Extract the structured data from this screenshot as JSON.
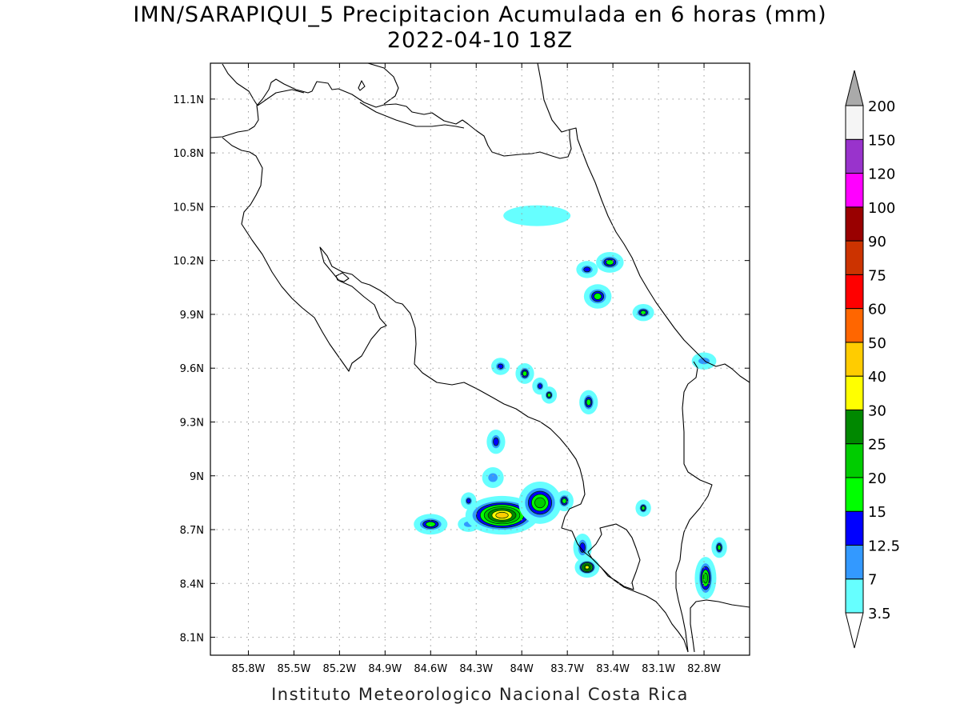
{
  "title": {
    "line1": "IMN/SARAPIQUI_5 Precipitacion Acumulada en 6 horas (mm)",
    "line2": "2022-04-10 18Z"
  },
  "footer": "Instituto Meteorologico Nacional Costa Rica",
  "map": {
    "lon_range": [
      -86.05,
      -82.5
    ],
    "lat_range": [
      8.0,
      11.3
    ],
    "lon_ticks": [
      {
        "value": -85.8,
        "label": "85.8W"
      },
      {
        "value": -85.5,
        "label": "85.5W"
      },
      {
        "value": -85.2,
        "label": "85.2W"
      },
      {
        "value": -84.9,
        "label": "84.9W"
      },
      {
        "value": -84.6,
        "label": "84.6W"
      },
      {
        "value": -84.3,
        "label": "84.3W"
      },
      {
        "value": -84.0,
        "label": "84W"
      },
      {
        "value": -83.7,
        "label": "83.7W"
      },
      {
        "value": -83.4,
        "label": "83.4W"
      },
      {
        "value": -83.1,
        "label": "83.1W"
      },
      {
        "value": -82.8,
        "label": "82.8W"
      }
    ],
    "lat_ticks": [
      {
        "value": 8.1,
        "label": "8.1N"
      },
      {
        "value": 8.4,
        "label": "8.4N"
      },
      {
        "value": 8.7,
        "label": "8.7N"
      },
      {
        "value": 9.0,
        "label": "9N"
      },
      {
        "value": 9.3,
        "label": "9.3N"
      },
      {
        "value": 9.6,
        "label": "9.6N"
      },
      {
        "value": 9.9,
        "label": "9.9N"
      },
      {
        "value": 10.2,
        "label": "10.2N"
      },
      {
        "value": 10.5,
        "label": "10.5N"
      },
      {
        "value": 10.8,
        "label": "10.8N"
      },
      {
        "value": 11.1,
        "label": "11.1N"
      }
    ],
    "grid": "dotted"
  },
  "colorbar": {
    "levels": [
      "3.5",
      "7",
      "12.5",
      "15",
      "20",
      "25",
      "30",
      "40",
      "50",
      "60",
      "75",
      "90",
      "100",
      "120",
      "150",
      "200"
    ],
    "colors": [
      "#66ffff",
      "#3399ff",
      "#0000ff",
      "#00ff00",
      "#00cc00",
      "#008800",
      "#ffff00",
      "#ffcc00",
      "#ff6600",
      "#ff0000",
      "#cc3300",
      "#990000",
      "#ff00ff",
      "#9933cc",
      "#f5f5f5",
      "#aaaaaa"
    ]
  },
  "precip_cells": [
    {
      "lon": -84.6,
      "lat": 8.73,
      "rx": 0.09,
      "ry": 0.04,
      "level": 3
    },
    {
      "lon": -84.35,
      "lat": 8.86,
      "rx": 0.03,
      "ry": 0.03,
      "level": 2
    },
    {
      "lon": -84.35,
      "lat": 8.73,
      "rx": 0.05,
      "ry": 0.025,
      "level": 1
    },
    {
      "lon": -84.13,
      "lat": 8.78,
      "rx": 0.22,
      "ry": 0.09,
      "level": 7
    },
    {
      "lon": -83.88,
      "lat": 8.85,
      "rx": 0.12,
      "ry": 0.1,
      "level": 4
    },
    {
      "lon": -83.72,
      "lat": 8.86,
      "rx": 0.04,
      "ry": 0.04,
      "level": 3
    },
    {
      "lon": -84.19,
      "lat": 8.99,
      "rx": 0.05,
      "ry": 0.04,
      "level": 1
    },
    {
      "lon": -84.17,
      "lat": 9.19,
      "rx": 0.04,
      "ry": 0.05,
      "level": 2
    },
    {
      "lon": -84.14,
      "lat": 9.61,
      "rx": 0.04,
      "ry": 0.03,
      "level": 2
    },
    {
      "lon": -83.98,
      "lat": 9.57,
      "rx": 0.04,
      "ry": 0.04,
      "level": 3
    },
    {
      "lon": -83.88,
      "lat": 9.5,
      "rx": 0.03,
      "ry": 0.03,
      "level": 2
    },
    {
      "lon": -83.82,
      "lat": 9.45,
      "rx": 0.03,
      "ry": 0.03,
      "level": 3
    },
    {
      "lon": -83.56,
      "lat": 9.41,
      "rx": 0.04,
      "ry": 0.05,
      "level": 3
    },
    {
      "lon": -83.5,
      "lat": 10.0,
      "rx": 0.07,
      "ry": 0.05,
      "level": 3
    },
    {
      "lon": -83.57,
      "lat": 10.15,
      "rx": 0.05,
      "ry": 0.03,
      "level": 2
    },
    {
      "lon": -83.42,
      "lat": 10.19,
      "rx": 0.07,
      "ry": 0.04,
      "level": 3
    },
    {
      "lon": -83.2,
      "lat": 9.91,
      "rx": 0.05,
      "ry": 0.03,
      "level": 3
    },
    {
      "lon": -83.6,
      "lat": 8.6,
      "rx": 0.04,
      "ry": 0.06,
      "level": 2
    },
    {
      "lon": -83.57,
      "lat": 8.49,
      "rx": 0.06,
      "ry": 0.04,
      "level": 6
    },
    {
      "lon": -83.2,
      "lat": 8.82,
      "rx": 0.03,
      "ry": 0.03,
      "level": 3
    },
    {
      "lon": -82.79,
      "lat": 8.43,
      "rx": 0.05,
      "ry": 0.1,
      "level": 4
    },
    {
      "lon": -82.7,
      "lat": 8.6,
      "rx": 0.03,
      "ry": 0.04,
      "level": 3
    },
    {
      "lon": -83.9,
      "lat": 10.45,
      "rx": 0.2,
      "ry": 0.04,
      "level": 0
    },
    {
      "lon": -82.8,
      "lat": 9.64,
      "rx": 0.06,
      "ry": 0.03,
      "level": 1
    }
  ]
}
